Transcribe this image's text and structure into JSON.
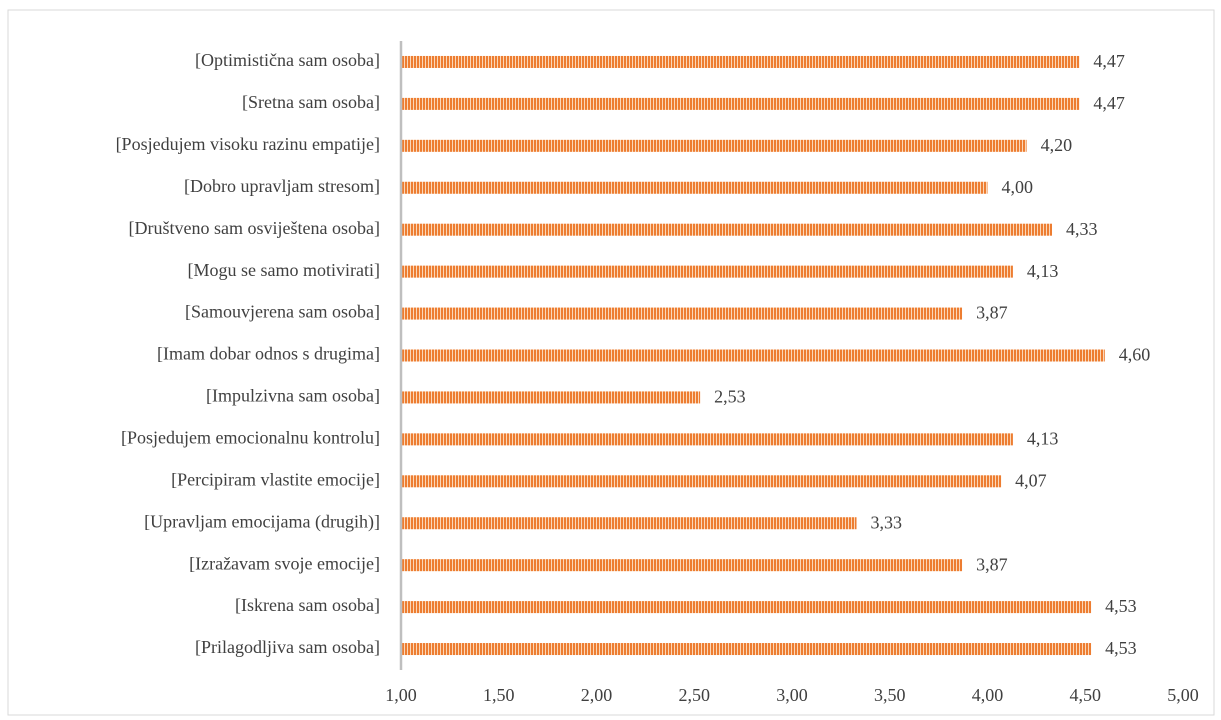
{
  "chart_data": {
    "type": "barh",
    "categories": [
      "[Optimistična sam osoba]",
      "[Sretna sam osoba]",
      "[Posjedujem visoku razinu empatije]",
      "[Dobro upravljam stresom]",
      "[Društveno sam osviještena osoba]",
      "[Mogu se samo motivirati]",
      "[Samouvjerena sam osoba]",
      "[Imam dobar odnos s drugima]",
      "[Impulzivna sam osoba]",
      "[Posjedujem emocionalnu kontrolu]",
      "[Percipiram vlastite emocije]",
      "[Upravljam emocijama (drugih)]",
      "[Izražavam svoje emocije]",
      "[Iskrena sam osoba]",
      "[Prilagodljiva sam osoba]"
    ],
    "values": [
      4.47,
      4.47,
      4.2,
      4.0,
      4.33,
      4.13,
      3.87,
      4.6,
      2.53,
      4.13,
      4.07,
      3.33,
      3.87,
      4.53,
      4.53
    ],
    "value_labels": [
      "4,47",
      "4,47",
      "4,20",
      "4,00",
      "4,33",
      "4,13",
      "3,87",
      "4,60",
      "2,53",
      "4,13",
      "4,07",
      "3,33",
      "3,87",
      "4,53",
      "4,53"
    ],
    "color": "#ed7d31",
    "xlim": [
      1,
      5
    ],
    "xticks": [
      {
        "value": 1,
        "label": "1,00"
      },
      {
        "value": 1.5,
        "label": "1,50"
      },
      {
        "value": 2,
        "label": "2,00"
      },
      {
        "value": 2.5,
        "label": "2,50"
      },
      {
        "value": 3,
        "label": "3,00"
      },
      {
        "value": 3.5,
        "label": "3,50"
      },
      {
        "value": 4,
        "label": "4,00"
      },
      {
        "value": 4.5,
        "label": "4,50"
      },
      {
        "value": 5,
        "label": "5,00"
      }
    ],
    "grid": false
  }
}
